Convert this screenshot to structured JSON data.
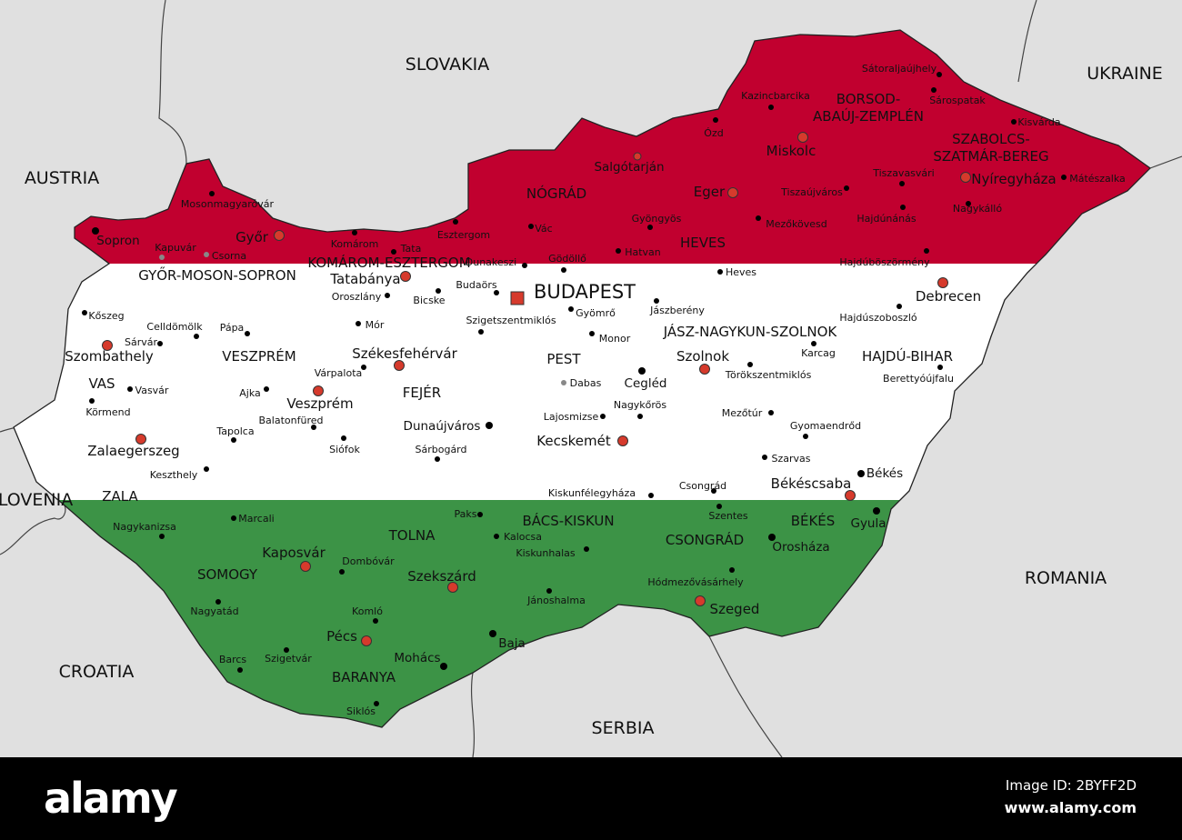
{
  "colors": {
    "sea_land": "#e0e0e0",
    "red": "#c1002f",
    "white": "#ffffff",
    "green": "#3c9346",
    "city_red": "#d63a2c",
    "border": "#333333"
  },
  "countries": [
    "SLOVAKIA",
    "UKRAINE",
    "AUSTRIA",
    "SLOVENIA",
    "CROATIA",
    "SERBIA",
    "ROMANIA"
  ],
  "counties": [
    "GYŐR-MOSON-SOPRON",
    "KOMÁROM-ESZTERGOM",
    "NÓGRÁD",
    "BORSOD-",
    "ABAÚJ-ZEMPLÉN",
    "SZABOLCS-",
    "SZATMÁR-BEREG",
    "HEVES",
    "PEST",
    "VESZPRÉM",
    "VAS",
    "FEJÉR",
    "JÁSZ-NAGYKUN-SZOLNOK",
    "HAJDÚ-BIHAR",
    "ZALA",
    "SOMOGY",
    "TOLNA",
    "BÁCS-KISKUN",
    "CSONGRÁD",
    "BÉKÉS",
    "BARANYA"
  ],
  "cities": [
    {
      "name": "Mosonmagyaróvár",
      "type": "town"
    },
    {
      "name": "Sopron",
      "type": "town-major"
    },
    {
      "name": "Kapuvár",
      "type": "town-faded"
    },
    {
      "name": "Csorna",
      "type": "town-faded"
    },
    {
      "name": "Győr",
      "type": "county-seat"
    },
    {
      "name": "Komárom",
      "type": "town"
    },
    {
      "name": "Tata",
      "type": "town"
    },
    {
      "name": "Esztergom",
      "type": "town"
    },
    {
      "name": "Vác",
      "type": "town"
    },
    {
      "name": "Dunakeszi",
      "type": "town"
    },
    {
      "name": "Gödöllő",
      "type": "town"
    },
    {
      "name": "Hatvan",
      "type": "town"
    },
    {
      "name": "Gyöngyös",
      "type": "town"
    },
    {
      "name": "Salgótarján",
      "type": "county-seat-small"
    },
    {
      "name": "Kazincbarcika",
      "type": "town"
    },
    {
      "name": "Ózd",
      "type": "town"
    },
    {
      "name": "Miskolc",
      "type": "county-seat"
    },
    {
      "name": "Eger",
      "type": "county-seat"
    },
    {
      "name": "Tiszaújváros",
      "type": "town"
    },
    {
      "name": "Mezőkövesd",
      "type": "town"
    },
    {
      "name": "Sátoraljaújhely",
      "type": "town"
    },
    {
      "name": "Sárospatak",
      "type": "town"
    },
    {
      "name": "Kisvárda",
      "type": "town"
    },
    {
      "name": "Tiszavasvári",
      "type": "town"
    },
    {
      "name": "Nyíregyháza",
      "type": "county-seat"
    },
    {
      "name": "Mátészalka",
      "type": "town"
    },
    {
      "name": "Hajdúnánás",
      "type": "town"
    },
    {
      "name": "Nagykálló",
      "type": "town"
    },
    {
      "name": "Hajdúböszörmény",
      "type": "town"
    },
    {
      "name": "Debrecen",
      "type": "county-seat"
    },
    {
      "name": "Hajdúszoboszló",
      "type": "town"
    },
    {
      "name": "Heves",
      "type": "town"
    },
    {
      "name": "Jászberény",
      "type": "town"
    },
    {
      "name": "BUDAPEST",
      "type": "capital"
    },
    {
      "name": "Budaörs",
      "type": "town"
    },
    {
      "name": "Tatabánya",
      "type": "county-seat"
    },
    {
      "name": "Oroszlány",
      "type": "town"
    },
    {
      "name": "Bicske",
      "type": "town"
    },
    {
      "name": "Szigetszentmiklós",
      "type": "town"
    },
    {
      "name": "Gyömrő",
      "type": "town"
    },
    {
      "name": "Monor",
      "type": "town"
    },
    {
      "name": "Mór",
      "type": "town"
    },
    {
      "name": "Pápa",
      "type": "town"
    },
    {
      "name": "Celldömölk",
      "type": "town"
    },
    {
      "name": "Kőszeg",
      "type": "town"
    },
    {
      "name": "Sárvár",
      "type": "town"
    },
    {
      "name": "Szombathely",
      "type": "county-seat"
    },
    {
      "name": "Vasvár",
      "type": "town"
    },
    {
      "name": "Körmend",
      "type": "town"
    },
    {
      "name": "Zalaegerszeg",
      "type": "county-seat"
    },
    {
      "name": "Keszthely",
      "type": "town"
    },
    {
      "name": "Tapolca",
      "type": "town"
    },
    {
      "name": "Ajka",
      "type": "town"
    },
    {
      "name": "Veszprém",
      "type": "county-seat"
    },
    {
      "name": "Várpalota",
      "type": "town"
    },
    {
      "name": "Székesfehérvár",
      "type": "county-seat"
    },
    {
      "name": "Balatonfüred",
      "type": "town"
    },
    {
      "name": "Siófok",
      "type": "town"
    },
    {
      "name": "Dunaújváros",
      "type": "town-major"
    },
    {
      "name": "Sárbogárd",
      "type": "town"
    },
    {
      "name": "Dabas",
      "type": "town-faded"
    },
    {
      "name": "Cegléd",
      "type": "town-major"
    },
    {
      "name": "Nagykőrös",
      "type": "town"
    },
    {
      "name": "Lajosmizse",
      "type": "town"
    },
    {
      "name": "Kecskemét",
      "type": "county-seat"
    },
    {
      "name": "Szolnok",
      "type": "county-seat"
    },
    {
      "name": "Törökszentmiklós",
      "type": "town"
    },
    {
      "name": "Karcag",
      "type": "town"
    },
    {
      "name": "Berettyóújfalu",
      "type": "town"
    },
    {
      "name": "Mezőtúr",
      "type": "town"
    },
    {
      "name": "Gyomaendrőd",
      "type": "town"
    },
    {
      "name": "Szarvas",
      "type": "town"
    },
    {
      "name": "Békés",
      "type": "town-major"
    },
    {
      "name": "Békéscsaba",
      "type": "county-seat"
    },
    {
      "name": "Gyula",
      "type": "town-major"
    },
    {
      "name": "Csongrád",
      "type": "town"
    },
    {
      "name": "Szentes",
      "type": "town"
    },
    {
      "name": "Kiskunfélegyháza",
      "type": "town"
    },
    {
      "name": "Orosháza",
      "type": "town-major"
    },
    {
      "name": "Hódmezővásárhely",
      "type": "town"
    },
    {
      "name": "Szeged",
      "type": "county-seat"
    },
    {
      "name": "Nagykanizsa",
      "type": "town"
    },
    {
      "name": "Marcali",
      "type": "town"
    },
    {
      "name": "Kaposvár",
      "type": "county-seat"
    },
    {
      "name": "Dombóvár",
      "type": "town"
    },
    {
      "name": "Paks",
      "type": "town"
    },
    {
      "name": "Kalocsa",
      "type": "town"
    },
    {
      "name": "Kiskunhalas",
      "type": "town"
    },
    {
      "name": "Szekszárd",
      "type": "county-seat"
    },
    {
      "name": "Jánoshalma",
      "type": "town"
    },
    {
      "name": "Nagyatád",
      "type": "town"
    },
    {
      "name": "Komló",
      "type": "town"
    },
    {
      "name": "Pécs",
      "type": "county-seat"
    },
    {
      "name": "Szigetvár",
      "type": "town"
    },
    {
      "name": "Barcs",
      "type": "town"
    },
    {
      "name": "Mohács",
      "type": "town-major"
    },
    {
      "name": "Baja",
      "type": "town-major"
    },
    {
      "name": "Siklós",
      "type": "town"
    }
  ],
  "footer": {
    "logo": "alamy",
    "image_id": "Image ID: 2BYFF2D",
    "site": "www.alamy.com"
  }
}
